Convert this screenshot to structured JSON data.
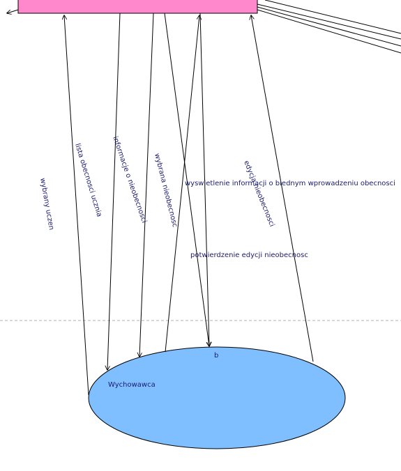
{
  "colors": {
    "process_fill": "#ff88cc",
    "actor_fill": "#80bfff",
    "label_color": "#1a1a6e",
    "divider": "#b0b0b0"
  },
  "actor": {
    "name": "Wychowawca",
    "node_label": "b"
  },
  "flows": [
    {
      "id": "wybrany-uczen",
      "label": "wybrany uczen"
    },
    {
      "id": "lista-obecnosci",
      "label": "lista obecnosci ucznia"
    },
    {
      "id": "informacje",
      "label": "informacje o nieobecnosci"
    },
    {
      "id": "wybrana-nieobecnosc",
      "label": "wybrana nieobecnosc"
    },
    {
      "id": "wyswietlenie",
      "label": "wyswietlenie informacji o blednym wprowadzeniu obecnosci"
    },
    {
      "id": "edycja",
      "label": "edycja nieobecnosci"
    },
    {
      "id": "potwierdzenie",
      "label": "potwierdzenie edycji nieobecnosc"
    }
  ]
}
